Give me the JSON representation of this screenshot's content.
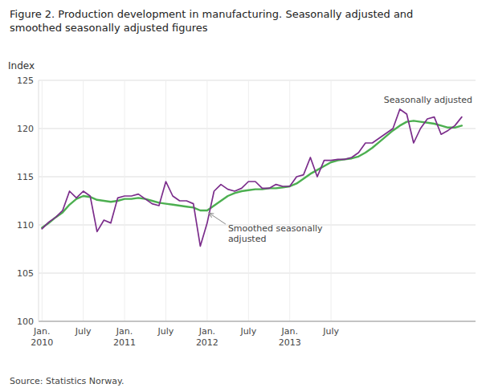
{
  "chart_data": {
    "type": "line",
    "title": "Figure 2. Production development in manufacturing. Seasonally adjusted and\nsmoothed seasonally adjusted figures",
    "y_label": "Index",
    "source": "Source: Statistics Norway.",
    "categories": [
      "Jan.\n2010",
      null,
      null,
      null,
      null,
      null,
      "July",
      null,
      null,
      null,
      null,
      null,
      "Jan.\n2011",
      null,
      null,
      null,
      null,
      null,
      "July",
      null,
      null,
      null,
      null,
      null,
      "Jan.\n2012",
      null,
      null,
      null,
      null,
      null,
      "July",
      null,
      null,
      null,
      null,
      null,
      "Jan.\n2013",
      null,
      null,
      null,
      null,
      null,
      "July",
      null,
      null,
      null,
      null,
      null,
      null,
      null,
      null,
      null,
      null,
      null,
      null,
      null,
      null,
      null,
      null,
      null,
      null,
      null
    ],
    "series": [
      {
        "name": "Smoothed seasonally\nadjusted",
        "color": "#4CAF50",
        "values": [
          109.7,
          110.2,
          110.8,
          111.3,
          112.1,
          112.7,
          113.0,
          112.9,
          112.6,
          112.5,
          112.4,
          112.5,
          112.7,
          112.7,
          112.8,
          112.7,
          112.5,
          112.3,
          112.2,
          112.1,
          112.0,
          111.9,
          111.8,
          111.5,
          111.5,
          112.0,
          112.5,
          113.0,
          113.3,
          113.5,
          113.6,
          113.7,
          113.7,
          113.8,
          113.8,
          113.9,
          114.0,
          114.3,
          114.8,
          115.3,
          115.7,
          116.1,
          116.5,
          116.7,
          116.8,
          116.9,
          117.1,
          117.5,
          118.0,
          118.6,
          119.2,
          119.8,
          120.3,
          120.7,
          120.8,
          120.7,
          120.6,
          120.5,
          120.3,
          120.1,
          120.1,
          120.3
        ]
      },
      {
        "name": "Seasonally adjusted",
        "color": "#7B2D8B",
        "values": [
          109.6,
          110.3,
          110.8,
          111.5,
          113.5,
          112.8,
          113.5,
          113.0,
          109.3,
          110.5,
          110.2,
          112.8,
          113.0,
          113.0,
          113.2,
          112.7,
          112.2,
          112.0,
          114.5,
          113.0,
          112.5,
          112.5,
          112.2,
          107.8,
          110.2,
          113.5,
          114.2,
          113.7,
          113.5,
          113.8,
          114.5,
          114.5,
          113.8,
          113.8,
          114.2,
          114.0,
          114.0,
          115.0,
          115.2,
          117.0,
          115.0,
          116.7,
          116.7,
          116.8,
          116.8,
          117.0,
          117.5,
          118.5,
          118.5,
          119.0,
          119.5,
          120.0,
          122.0,
          121.5,
          118.5,
          120.0,
          121.0,
          121.2,
          119.4,
          119.8,
          120.3,
          121.2
        ]
      }
    ],
    "ylim": [
      100,
      125
    ],
    "yticks": [
      100,
      105,
      110,
      115,
      120,
      125
    ],
    "grid": true
  }
}
